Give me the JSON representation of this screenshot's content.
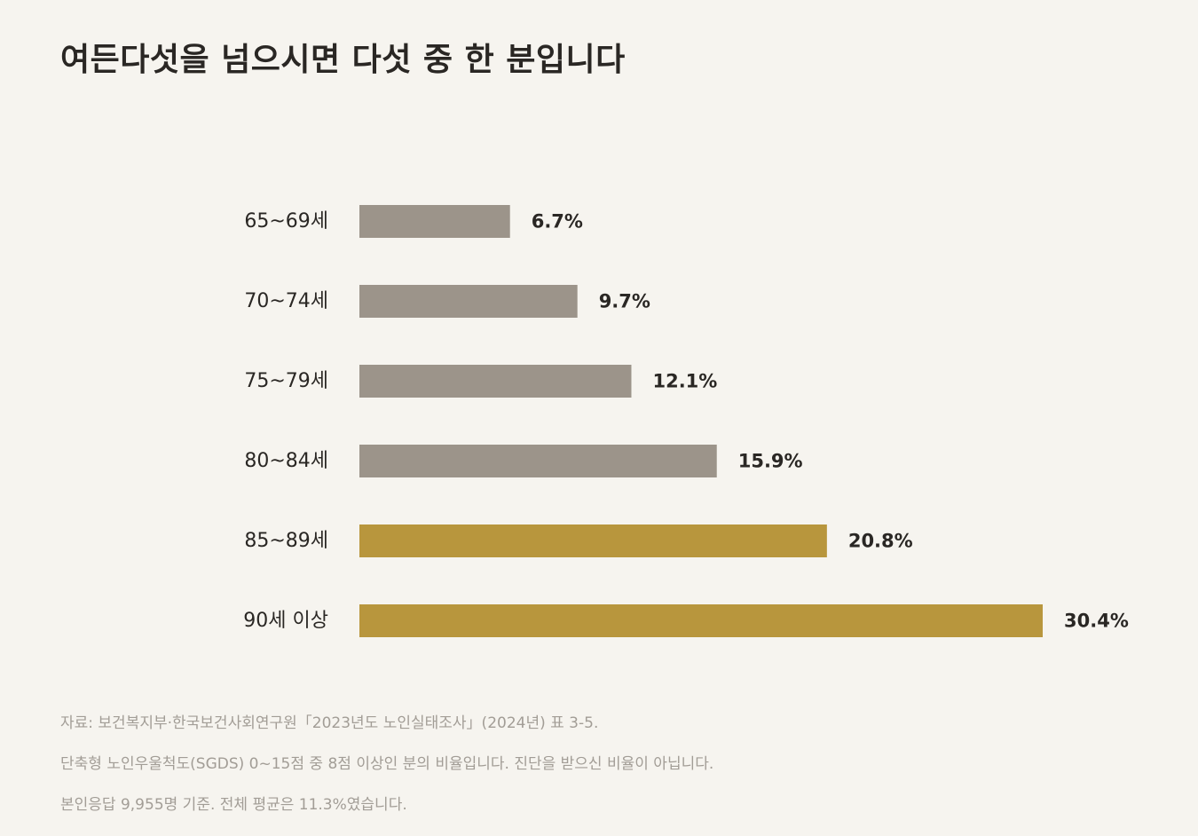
{
  "title": "여든다섯을 넘으시면 다섯 중 한 분입니다",
  "chart_data": {
    "type": "bar",
    "orientation": "horizontal",
    "categories": [
      "65~69세",
      "70~74세",
      "75~79세",
      "80~84세",
      "85~89세",
      "90세 이상"
    ],
    "values": [
      6.7,
      9.7,
      12.1,
      15.9,
      20.8,
      30.4
    ],
    "value_labels": [
      "6.7%",
      "9.7%",
      "12.1%",
      "15.9%",
      "20.8%",
      "30.4%"
    ],
    "unit": "%",
    "xlim": [
      0,
      30.4
    ],
    "grid": false,
    "legend": "none",
    "colors": [
      "#9c948a",
      "#9c948a",
      "#9c948a",
      "#9c948a",
      "#b8963d",
      "#b8963d"
    ]
  },
  "notes": [
    "자료: 보건복지부·한국보건사회연구원「2023년도 노인실태조사」(2024년) 표 3-5.",
    "단축형 노인우울척도(SGDS) 0~15점 중 8점 이상인 분의 비율입니다. 진단을 받으신 비율이 아닙니다.",
    "본인응답 9,955명 기준. 전체 평균은 11.3%였습니다."
  ]
}
